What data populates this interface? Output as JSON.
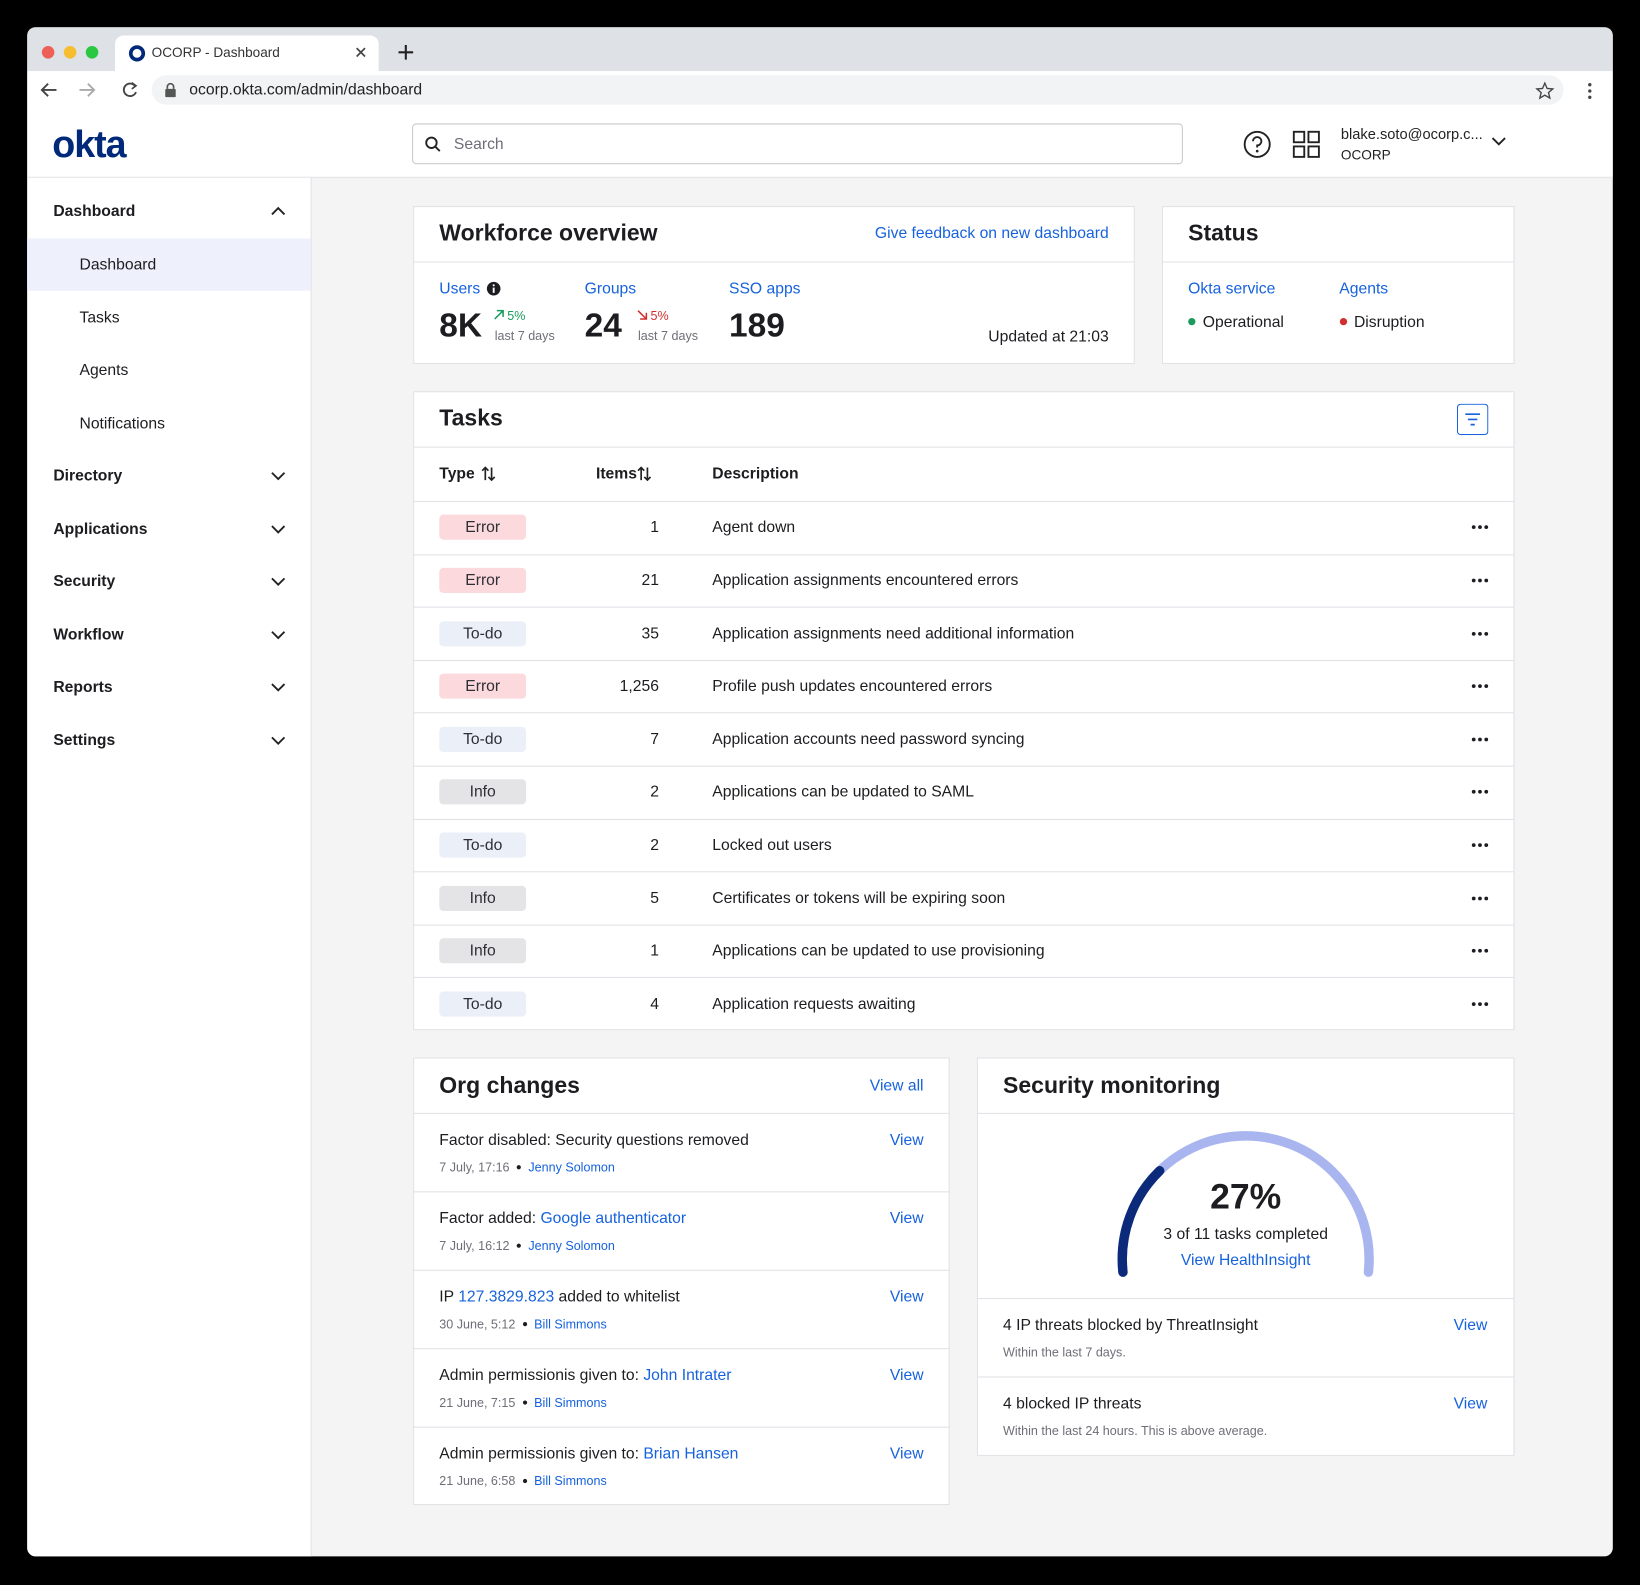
{
  "browser": {
    "tab_title": "OCORP - Dashboard",
    "url": "ocorp.okta.com/admin/dashboard"
  },
  "header": {
    "logo": "okta",
    "search_placeholder": "Search",
    "user_email": "blake.soto@ocorp.c...",
    "org": "OCORP"
  },
  "sidebar": {
    "section": "Dashboard",
    "items": [
      "Dashboard",
      "Tasks",
      "Agents",
      "Notifications"
    ],
    "groups": [
      "Directory",
      "Applications",
      "Security",
      "Workflow",
      "Reports",
      "Settings"
    ]
  },
  "workforce": {
    "title": "Workforce overview",
    "feedback_link": "Give feedback on new dashboard",
    "stats": [
      {
        "label": "Users",
        "value": "8K",
        "change": "5%",
        "trend": "up",
        "color": "#1a9b5c",
        "period": "last 7 days"
      },
      {
        "label": "Groups",
        "value": "24",
        "change": "5%",
        "trend": "down",
        "color": "#d22f2f",
        "period": "last 7 days"
      },
      {
        "label": "SSO apps",
        "value": "189"
      }
    ],
    "updated": "Updated at 21:03"
  },
  "status": {
    "title": "Status",
    "items": [
      {
        "label": "Okta service",
        "state": "Operational",
        "dot_color": "#1a9b5c"
      },
      {
        "label": "Agents",
        "state": "Disruption",
        "dot_color": "#d22f2f"
      }
    ]
  },
  "tasks": {
    "title": "Tasks",
    "columns": [
      "Type",
      "Items",
      "Description"
    ],
    "rows": [
      {
        "type": "Error",
        "type_color": "#fbd9dd",
        "items": "1",
        "description": "Agent down"
      },
      {
        "type": "Error",
        "type_color": "#fbd9dd",
        "items": "21",
        "description": "Application assignments encountered errors"
      },
      {
        "type": "To-do",
        "type_color": "#ebeff8",
        "items": "35",
        "description": "Application assignments need additional information"
      },
      {
        "type": "Error",
        "type_color": "#fbd9dd",
        "items": "1,256",
        "description": "Profile push updates encountered errors"
      },
      {
        "type": "To-do",
        "type_color": "#ebeff8",
        "items": "7",
        "description": "Application accounts need password syncing"
      },
      {
        "type": "Info",
        "type_color": "#e4e4e6",
        "items": "2",
        "description": "Applications can be updated to SAML"
      },
      {
        "type": "To-do",
        "type_color": "#ebeff8",
        "items": "2",
        "description": "Locked out users"
      },
      {
        "type": "Info",
        "type_color": "#e4e4e6",
        "items": "5",
        "description": "Certificates or tokens will be expiring soon"
      },
      {
        "type": "Info",
        "type_color": "#e4e4e6",
        "items": "1",
        "description": "Applications can be updated to use provisioning"
      },
      {
        "type": "To-do",
        "type_color": "#ebeff8",
        "items": "4",
        "description": "Application requests awaiting"
      }
    ]
  },
  "org_changes": {
    "title": "Org changes",
    "view_all": "View all",
    "items": [
      {
        "prefix": "Factor disabled: Security questions removed",
        "date": "7 July, 17:16",
        "author": "Jenny Solomon",
        "action": "View"
      },
      {
        "prefix": "Factor added:",
        "link": "Google authenticator",
        "date": "7 July, 16:12",
        "author": "Jenny Solomon",
        "action": "View"
      },
      {
        "prefix": "IP",
        "link": "127.3829.823",
        "suffix": "added to whitelist",
        "date": "30 June, 5:12",
        "author": "Bill Simmons",
        "action": "View"
      },
      {
        "prefix": "Admin permissionis given to:",
        "link": "John Intrater",
        "date": "21 June, 7:15",
        "author": "Bill Simmons",
        "action": "View"
      },
      {
        "prefix": "Admin permissionis given to:",
        "link": "Brian Hansen",
        "date": "21 June, 6:58",
        "author": "Bill Simmons",
        "action": "View"
      }
    ]
  },
  "security": {
    "title": "Security monitoring",
    "gauge": {
      "value": 27,
      "label": "27%"
    },
    "gauge_caption": "3 of 11 tasks completed",
    "gauge_link": "View HealthInsight",
    "items": [
      {
        "title": "4 IP threats blocked by ThreatInsight",
        "subtitle": "Within the last 7 days.",
        "action": "View"
      },
      {
        "title": "4 blocked IP threats",
        "subtitle": "Within the last 24 hours. This is above average.",
        "action": "View"
      }
    ]
  }
}
